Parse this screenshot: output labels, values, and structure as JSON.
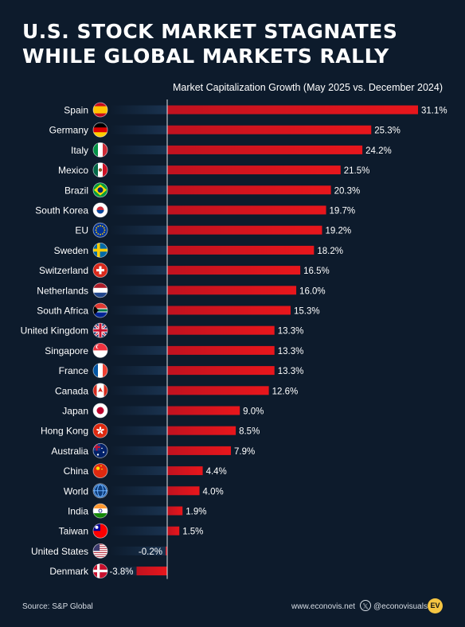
{
  "title_lines": [
    "U.S. STOCK MARKET STAGNATES",
    "WHILE GLOBAL MARKETS RALLY"
  ],
  "subtitle": "Market Capitalization Growth (May 2025 vs. December 2024)",
  "footer": {
    "source": "Source: S&P Global",
    "website": "www.econovis.net",
    "x_icon": "𝕏",
    "handle": "@econovisuals",
    "logo": "EV"
  },
  "colors": {
    "background": "#0d1b2c",
    "bar": "#e8161c",
    "track": "#1a3350",
    "axis": "#e0e4ea"
  },
  "chart_data": {
    "type": "bar",
    "orientation": "horizontal",
    "value_suffix": "%",
    "categories": [
      "Spain",
      "Germany",
      "Italy",
      "Mexico",
      "Brazil",
      "South Korea",
      "EU",
      "Sweden",
      "Switzerland",
      "Netherlands",
      "South Africa",
      "United Kingdom",
      "Singapore",
      "France",
      "Canada",
      "Japan",
      "Hong Kong",
      "Australia",
      "China",
      "World",
      "India",
      "Taiwan",
      "United States",
      "Denmark"
    ],
    "values": [
      31.1,
      25.3,
      24.2,
      21.5,
      20.3,
      19.7,
      19.2,
      18.2,
      16.5,
      16.0,
      15.3,
      13.3,
      13.3,
      13.3,
      12.6,
      9.0,
      8.5,
      7.9,
      4.4,
      4.0,
      1.9,
      1.5,
      -0.2,
      -3.8
    ],
    "labels": [
      "31.1%",
      "25.3%",
      "24.2%",
      "21.5%",
      "20.3%",
      "19.7%",
      "19.2%",
      "18.2%",
      "16.5%",
      "16.0%",
      "15.3%",
      "13.3%",
      "13.3%",
      "13.3%",
      "12.6%",
      "9.0%",
      "8.5%",
      "7.9%",
      "4.4%",
      "4.0%",
      "1.9%",
      "1.5%",
      "-0.2%",
      "-3.8%"
    ],
    "flags": [
      "spain-flag-icon",
      "germany-flag-icon",
      "italy-flag-icon",
      "mexico-flag-icon",
      "brazil-flag-icon",
      "south-korea-flag-icon",
      "eu-flag-icon",
      "sweden-flag-icon",
      "switzerland-flag-icon",
      "netherlands-flag-icon",
      "south-africa-flag-icon",
      "united-kingdom-flag-icon",
      "singapore-flag-icon",
      "france-flag-icon",
      "canada-flag-icon",
      "japan-flag-icon",
      "hong-kong-flag-icon",
      "australia-flag-icon",
      "china-flag-icon",
      "world-globe-icon",
      "india-flag-icon",
      "taiwan-flag-icon",
      "united-states-flag-icon",
      "denmark-flag-icon"
    ],
    "xlim": [
      -4,
      31.1
    ],
    "grid": false,
    "legend": "none"
  }
}
